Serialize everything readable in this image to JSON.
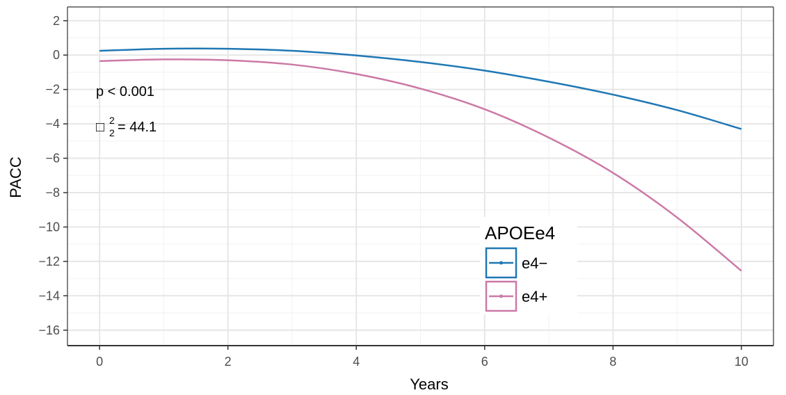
{
  "chart_data": {
    "type": "line",
    "xlabel": "Years",
    "ylabel": "PACC",
    "xlim": [
      -0.5,
      10.5
    ],
    "ylim": [
      -16.9,
      2.8
    ],
    "x_ticks": [
      0,
      2,
      4,
      6,
      8,
      10
    ],
    "x_tick_labels": [
      "0",
      "2",
      "4",
      "6",
      "8",
      "10"
    ],
    "y_ticks": [
      2,
      0,
      -2,
      -4,
      -6,
      -8,
      -10,
      -12,
      -14,
      -16
    ],
    "y_tick_labels": [
      "2",
      "0",
      "−2",
      "−4",
      "−6",
      "−8",
      "−10",
      "−12",
      "−14",
      "−16"
    ],
    "grid": true,
    "x": [
      0,
      1,
      2,
      3,
      4,
      5,
      6,
      7,
      8,
      9,
      10
    ],
    "series": [
      {
        "name": "e4−",
        "color": "#1f77b4",
        "values": [
          0.25,
          0.37,
          0.37,
          0.25,
          -0.02,
          -0.4,
          -0.9,
          -1.55,
          -2.3,
          -3.2,
          -4.3
        ]
      },
      {
        "name": "e4+",
        "color": "#cc79a7",
        "values": [
          -0.35,
          -0.25,
          -0.3,
          -0.55,
          -1.1,
          -1.95,
          -3.15,
          -4.8,
          -6.85,
          -9.45,
          -12.55
        ]
      }
    ],
    "legend": {
      "title": "APOEe4",
      "placement": "bottom-right"
    },
    "annotations": {
      "p_value": "p < 0.001",
      "stat_symbol": "□",
      "stat_superscript": "2",
      "stat_subscript": "2",
      "stat_value": "= 44.1"
    }
  }
}
